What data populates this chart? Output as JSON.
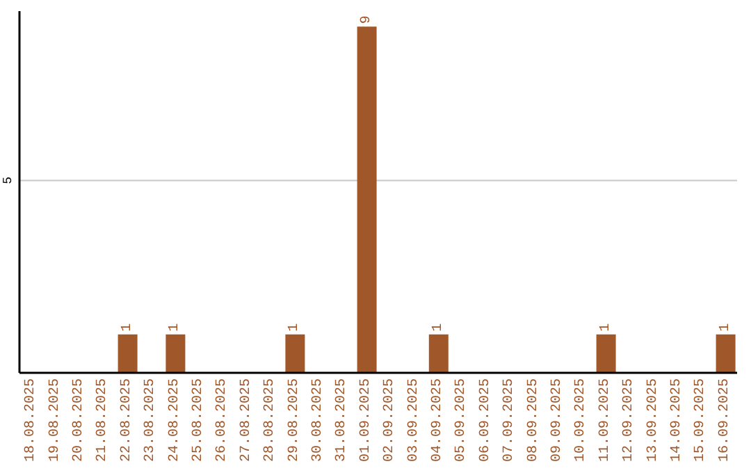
{
  "chart_data": {
    "type": "bar",
    "categories": [
      "18.08.2025",
      "19.08.2025",
      "20.08.2025",
      "21.08.2025",
      "22.08.2025",
      "23.08.2025",
      "24.08.2025",
      "25.08.2025",
      "26.08.2025",
      "27.08.2025",
      "28.08.2025",
      "29.08.2025",
      "30.08.2025",
      "31.08.2025",
      "01.09.2025",
      "02.09.2025",
      "03.09.2025",
      "04.09.2025",
      "05.09.2025",
      "06.09.2025",
      "07.09.2025",
      "08.09.2025",
      "09.09.2025",
      "10.09.2025",
      "11.09.2025",
      "12.09.2025",
      "13.09.2025",
      "14.09.2025",
      "15.09.2025",
      "16.09.2025"
    ],
    "values": [
      0,
      0,
      0,
      0,
      1,
      0,
      1,
      0,
      0,
      0,
      0,
      1,
      0,
      0,
      9,
      0,
      0,
      1,
      0,
      0,
      0,
      0,
      0,
      0,
      1,
      0,
      0,
      0,
      0,
      1
    ],
    "value_labels": [
      null,
      null,
      null,
      null,
      "1",
      null,
      "1",
      null,
      null,
      null,
      null,
      "1",
      null,
      null,
      "9",
      null,
      null,
      "1",
      null,
      null,
      null,
      null,
      null,
      null,
      "1",
      null,
      null,
      null,
      null,
      "1"
    ],
    "color": "#a0572a",
    "ylim": [
      0,
      9.4
    ],
    "yticks": [
      5
    ],
    "grid": "y"
  }
}
